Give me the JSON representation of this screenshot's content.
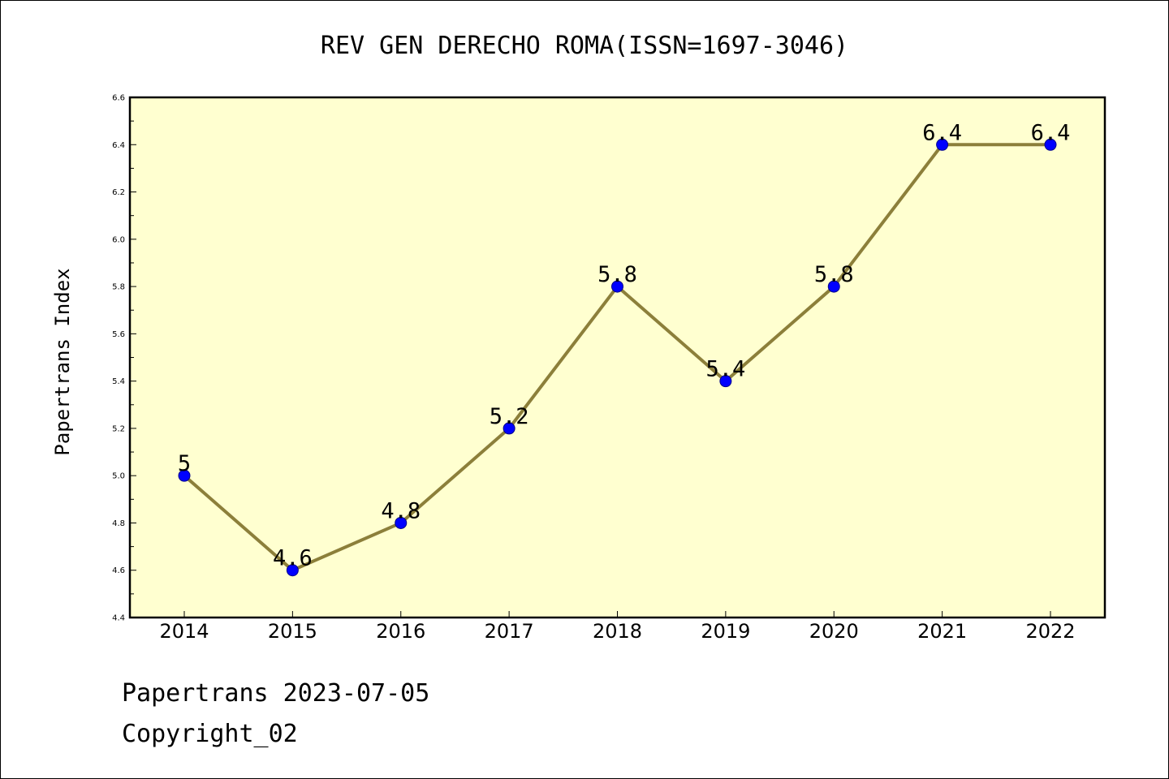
{
  "chart_data": {
    "type": "line",
    "title": "REV GEN DERECHO ROMA(ISSN=1697-3046)",
    "xlabel": "",
    "ylabel": "Papertrans Index",
    "categories": [
      "2014",
      "2015",
      "2016",
      "2017",
      "2018",
      "2019",
      "2020",
      "2021",
      "2022"
    ],
    "values": [
      5.0,
      4.6,
      4.8,
      5.2,
      5.8,
      5.4,
      5.8,
      6.4,
      6.4
    ],
    "data_labels": [
      "5",
      "4.6",
      "4.8",
      "5.2",
      "5.8",
      "5.4",
      "5.8",
      "6.4",
      "6.4"
    ],
    "ylim": [
      4.4,
      6.6
    ],
    "yticks": [
      "4.4",
      "4.6",
      "4.8",
      "5.0",
      "5.2",
      "5.4",
      "5.6",
      "5.8",
      "6.0",
      "6.2",
      "6.4",
      "6.6"
    ],
    "grid": false,
    "legend": "none",
    "colors": {
      "line": "#8c7f3a",
      "marker": "#0000ff",
      "plot_background": "#ffffd0"
    }
  },
  "footer": {
    "source_line": "Papertrans 2023-07-05",
    "copyright": "Copyright_02"
  }
}
